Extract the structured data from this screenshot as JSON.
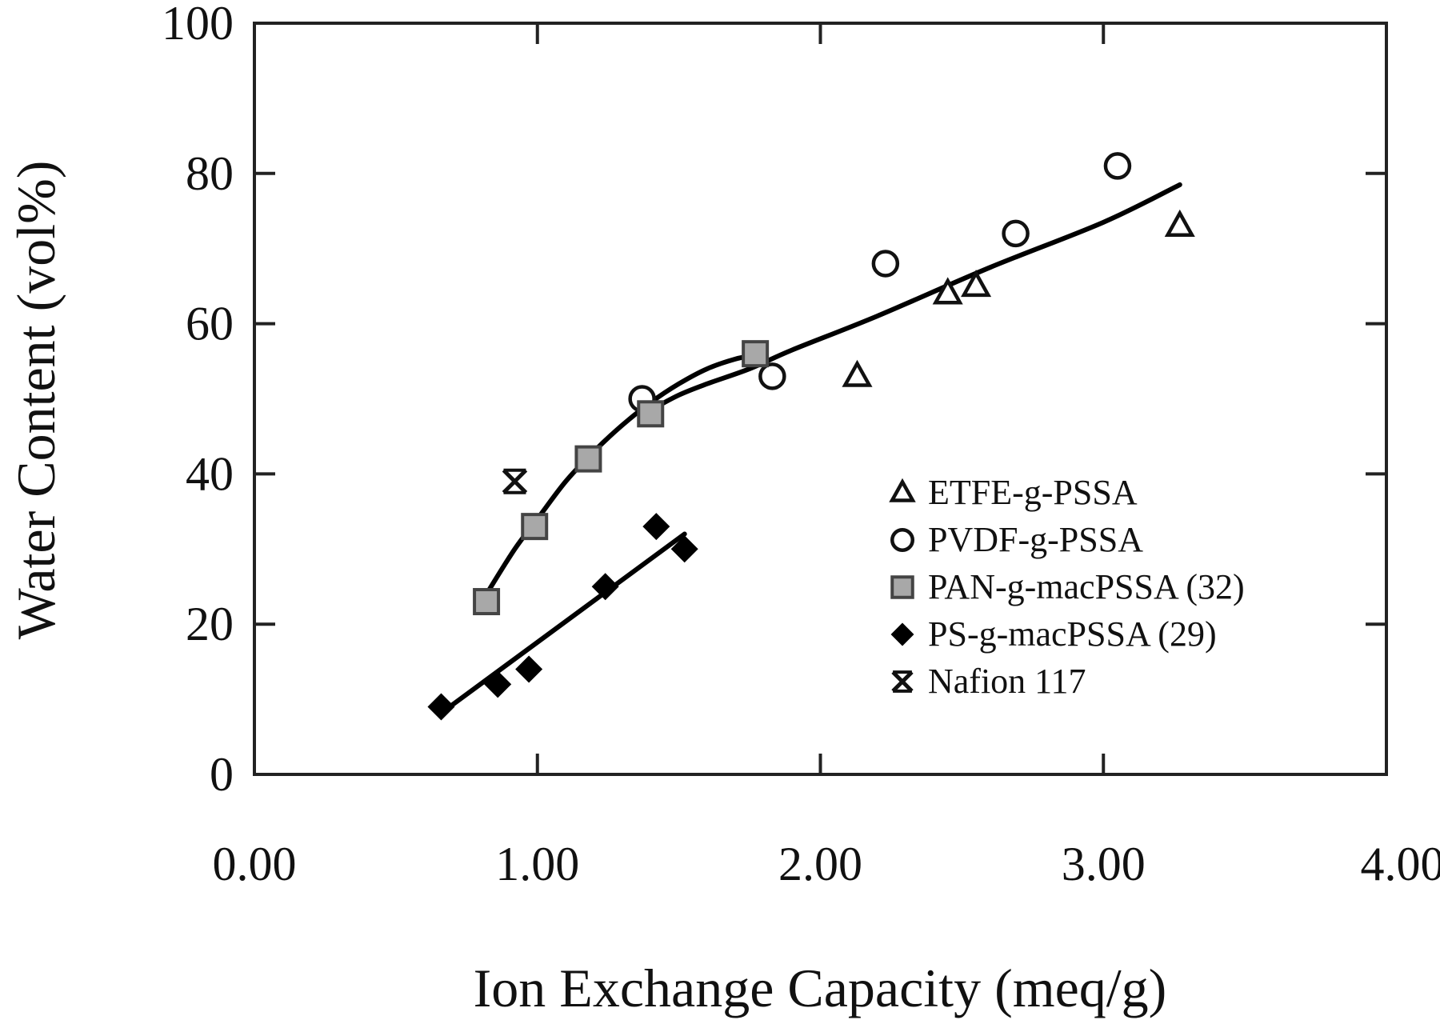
{
  "chart_data": {
    "type": "scatter",
    "title": "",
    "xlabel": "Ion Exchange Capacity (meq/g)",
    "ylabel": "Water Content (vol%)",
    "xlim": [
      0,
      4
    ],
    "ylim": [
      0,
      100
    ],
    "xticks": [
      0,
      1,
      2,
      3,
      4
    ],
    "xtick_labels": [
      "0.00",
      "1.00",
      "2.00",
      "3.00",
      "4.00"
    ],
    "yticks": [
      0,
      20,
      40,
      60,
      80,
      100
    ],
    "ytick_labels": [
      "0",
      "20",
      "40",
      "60",
      "80",
      "100"
    ],
    "grid": false,
    "legend_position": "lower right (inside)",
    "series": [
      {
        "name": "ETFE-g-PSSA",
        "marker": "triangle-open",
        "color": "#111111",
        "x": [
          2.13,
          2.45,
          2.55,
          3.27
        ],
        "y": [
          53,
          64,
          65,
          73
        ]
      },
      {
        "name": "PVDF-g-PSSA",
        "marker": "circle-open",
        "color": "#111111",
        "x": [
          1.37,
          1.83,
          2.23,
          2.69,
          3.05
        ],
        "y": [
          50,
          53,
          68,
          72,
          81
        ]
      },
      {
        "name": "PAN-g-macPSSA (32)",
        "marker": "square-gray",
        "color": "#a8a8a8",
        "x": [
          0.82,
          0.99,
          1.18,
          1.4,
          1.77
        ],
        "y": [
          23,
          33,
          42,
          48,
          56
        ]
      },
      {
        "name": "PS-g-macPSSA (29)",
        "marker": "diamond-filled",
        "color": "#000000",
        "x": [
          0.66,
          0.86,
          0.97,
          1.24,
          1.42,
          1.52
        ],
        "y": [
          9,
          12,
          14,
          25,
          33,
          30
        ]
      },
      {
        "name": "Nafion 117",
        "marker": "asterisk",
        "color": "#111111",
        "x": [
          0.92
        ],
        "y": [
          39
        ]
      }
    ],
    "trend_lines": [
      {
        "name": "PAN-g-macPSSA fit",
        "type": "curve",
        "points": [
          [
            0.82,
            24
          ],
          [
            0.92,
            30
          ],
          [
            1.0,
            34
          ],
          [
            1.1,
            39
          ],
          [
            1.2,
            43
          ],
          [
            1.3,
            46.5
          ],
          [
            1.4,
            49.5
          ],
          [
            1.5,
            52
          ],
          [
            1.6,
            54
          ],
          [
            1.7,
            55.3
          ],
          [
            1.77,
            55.8
          ]
        ]
      },
      {
        "name": "PVDF/ETFE fit",
        "type": "curve",
        "points": [
          [
            1.4,
            48.5
          ],
          [
            1.5,
            50.5
          ],
          [
            1.6,
            52
          ],
          [
            1.75,
            54
          ],
          [
            1.9,
            56.5
          ],
          [
            2.2,
            61
          ],
          [
            2.6,
            67.5
          ],
          [
            3.0,
            73.5
          ],
          [
            3.27,
            78.5
          ]
        ]
      },
      {
        "name": "PS-g-macPSSA fit",
        "type": "line",
        "points": [
          [
            0.69,
            9
          ],
          [
            1.52,
            32
          ]
        ]
      }
    ],
    "annotations": []
  },
  "legend": {
    "items": [
      {
        "label": "ETFE-g-PSSA",
        "marker": "triangle-open"
      },
      {
        "label": "PVDF-g-PSSA",
        "marker": "circle-open"
      },
      {
        "label": "PAN-g-macPSSA (32)",
        "marker": "square-gray"
      },
      {
        "label": "PS-g-macPSSA (29)",
        "marker": "diamond-filled"
      },
      {
        "label": "Nafion 117",
        "marker": "asterisk"
      }
    ]
  },
  "colors": {
    "axis": "#222222",
    "text": "#111111",
    "square_fill": "#a8a8a8",
    "background": "#ffffff"
  }
}
